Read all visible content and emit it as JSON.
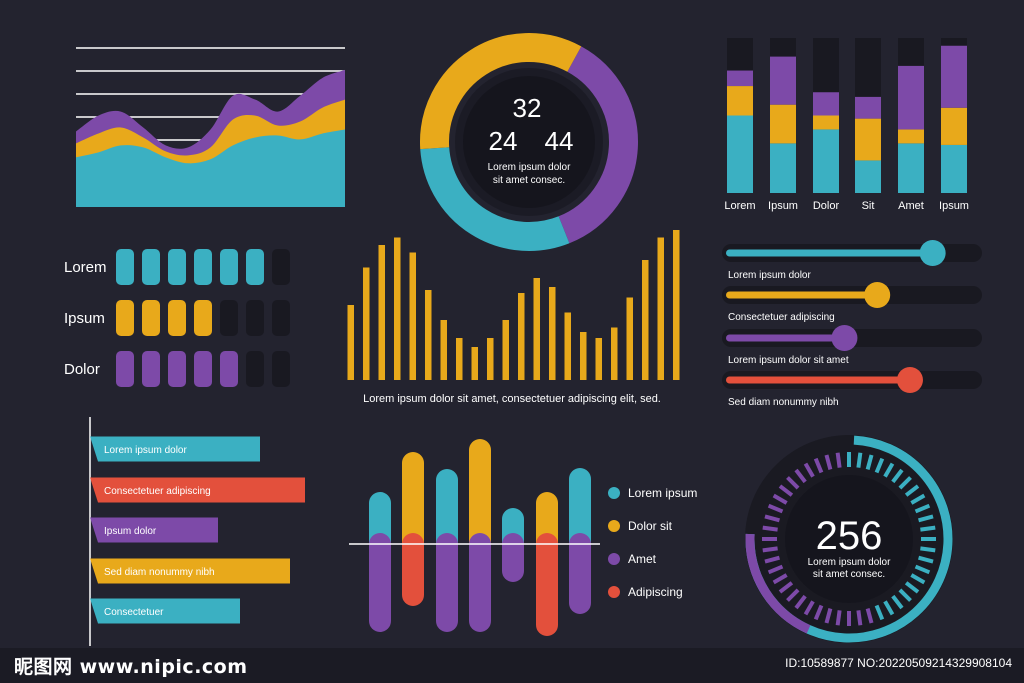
{
  "colors": {
    "background": "#23232f",
    "track": "#1a1a22",
    "teal": "#3bb0c2",
    "yellow": "#e8a91b",
    "purple": "#7d4aa8",
    "orange": "#e3503c",
    "white": "#ffffff"
  },
  "watermark": {
    "left_text": "昵图网 www.nipic.com",
    "right_text": "ID:10589877 NO:20220509214329908104"
  },
  "chart_data": [
    {
      "type": "area",
      "id": "stacked-area",
      "series": [
        {
          "color": "teal",
          "values": [
            50,
            55,
            62,
            60,
            50,
            44,
            48,
            62,
            70,
            72,
            68,
            74,
            78
          ]
        },
        {
          "color": "yellow",
          "values": [
            64,
            74,
            80,
            70,
            56,
            52,
            60,
            88,
            92,
            82,
            86,
            100,
            108
          ]
        },
        {
          "color": "purple",
          "values": [
            76,
            92,
            96,
            80,
            62,
            60,
            78,
            112,
            108,
            96,
            112,
            130,
            138
          ]
        }
      ],
      "grid": true
    },
    {
      "type": "pie",
      "id": "donut",
      "slices": [
        {
          "color": "purple",
          "value": 36
        },
        {
          "color": "teal",
          "value": 30
        },
        {
          "color": "yellow",
          "value": 34
        }
      ],
      "center_top": "32",
      "center_left": "24",
      "center_right": "44",
      "caption_line1": "Lorem ipsum dolor",
      "caption_line2": "sit amet consec."
    },
    {
      "type": "bar",
      "id": "stacked-columns",
      "categories": [
        "Lorem",
        "Ipsum",
        "Dolor",
        "Sit",
        "Amet",
        "Ipsum"
      ],
      "series": [
        {
          "color": "teal",
          "values": [
            50,
            32,
            41,
            21,
            32,
            31
          ]
        },
        {
          "color": "yellow",
          "values": [
            19,
            25,
            9,
            27,
            9,
            24
          ]
        },
        {
          "color": "purple",
          "values": [
            10,
            31,
            15,
            14,
            41,
            40
          ]
        }
      ],
      "ylim": [
        0,
        100
      ]
    },
    {
      "type": "bar",
      "id": "pill-grid",
      "categories": [
        "Lorem",
        "Ipsum",
        "Dolor"
      ],
      "series_colors": [
        "teal",
        "yellow",
        "purple"
      ],
      "filled": [
        6,
        4,
        5
      ],
      "total": 7
    },
    {
      "type": "bar",
      "id": "wave-bars",
      "values": [
        50,
        75,
        90,
        95,
        85,
        60,
        40,
        28,
        22,
        28,
        40,
        58,
        68,
        62,
        45,
        32,
        28,
        35,
        55,
        80,
        95,
        100
      ],
      "caption": "Lorem ipsum dolor sit amet, consectetuer adipiscing elit, sed."
    },
    {
      "type": "bar",
      "id": "sliders",
      "items": [
        {
          "label": "Lorem ipsum dolor",
          "value": 82,
          "color": "teal"
        },
        {
          "label": "Consectetuer adipiscing",
          "value": 60,
          "color": "yellow"
        },
        {
          "label": "Lorem ipsum dolor sit amet",
          "value": 47,
          "color": "purple"
        },
        {
          "label": "Sed diam nonummy nibh",
          "value": 73,
          "color": "orange"
        }
      ]
    },
    {
      "type": "bar",
      "id": "horizontal-bars",
      "items": [
        {
          "label": "Lorem ipsum dolor",
          "value": 170,
          "color": "teal"
        },
        {
          "label": "Consectetuer adipiscing",
          "value": 215,
          "color": "orange"
        },
        {
          "label": "Ipsum dolor",
          "value": 128,
          "color": "purple"
        },
        {
          "label": "Sed diam nonummy nibh",
          "value": 200,
          "color": "yellow"
        },
        {
          "label": "Consectetuer",
          "value": 150,
          "color": "teal"
        }
      ]
    },
    {
      "type": "bar",
      "id": "diverging-bars",
      "bars": [
        {
          "up": 52,
          "up_color": "teal",
          "down": 88,
          "down_color": "purple"
        },
        {
          "up": 92,
          "up_color": "yellow",
          "down": 62,
          "down_color": "orange"
        },
        {
          "up": 75,
          "up_color": "teal",
          "down": 88,
          "down_color": "purple"
        },
        {
          "up": 105,
          "up_color": "yellow",
          "down": 88,
          "down_color": "purple"
        },
        {
          "up": 36,
          "up_color": "teal",
          "down": 38,
          "down_color": "purple"
        },
        {
          "up": 52,
          "up_color": "yellow",
          "down": 92,
          "down_color": "orange"
        },
        {
          "up": 76,
          "up_color": "teal",
          "down": 70,
          "down_color": "purple"
        }
      ],
      "legend": [
        {
          "label": "Lorem ipsum",
          "color": "teal"
        },
        {
          "label": "Dolor sit",
          "color": "yellow"
        },
        {
          "label": "Amet",
          "color": "purple"
        },
        {
          "label": "Adipiscing",
          "color": "orange"
        }
      ]
    },
    {
      "type": "pie",
      "id": "gauge",
      "value": "256",
      "progress": 0.75,
      "caption_line1": "Lorem ipsum dolor",
      "caption_line2": "sit amet consec."
    }
  ]
}
